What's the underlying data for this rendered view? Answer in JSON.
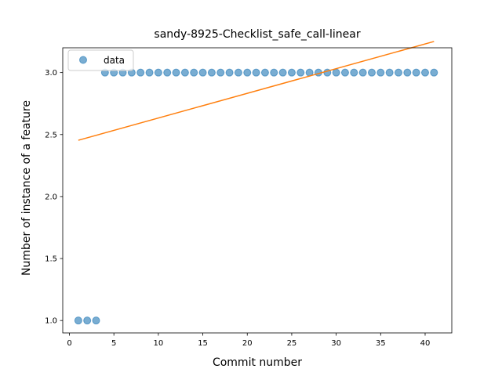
{
  "chart_data": {
    "type": "scatter",
    "title": "sandy-8925-Checklist_safe_call-linear",
    "xlabel": "Commit number",
    "ylabel": "Number of instance of a feature",
    "xlim": [
      -0.75,
      43.0
    ],
    "ylim": [
      0.9,
      3.2
    ],
    "xticks": [
      0,
      5,
      10,
      15,
      20,
      25,
      30,
      35,
      40
    ],
    "xtick_labels": [
      "0",
      "5",
      "10",
      "15",
      "20",
      "25",
      "30",
      "35",
      "40"
    ],
    "yticks": [
      1.0,
      1.5,
      2.0,
      2.5,
      3.0
    ],
    "ytick_labels": [
      "1.0",
      "1.5",
      "2.0",
      "2.5",
      "3.0"
    ],
    "grid": false,
    "legend_position": "top-left",
    "series": [
      {
        "name": "data",
        "kind": "scatter",
        "color": "#1f77b4",
        "x": [
          1,
          2,
          3,
          4,
          5,
          6,
          7,
          8,
          9,
          10,
          11,
          12,
          13,
          14,
          15,
          16,
          17,
          18,
          19,
          20,
          21,
          22,
          23,
          24,
          25,
          26,
          27,
          28,
          29,
          30,
          31,
          32,
          33,
          34,
          35,
          36,
          37,
          38,
          39,
          40,
          41
        ],
        "y": [
          1,
          1,
          1,
          3,
          3,
          3,
          3,
          3,
          3,
          3,
          3,
          3,
          3,
          3,
          3,
          3,
          3,
          3,
          3,
          3,
          3,
          3,
          3,
          3,
          3,
          3,
          3,
          3,
          3,
          3,
          3,
          3,
          3,
          3,
          3,
          3,
          3,
          3,
          3,
          3,
          3
        ]
      },
      {
        "kind": "line",
        "color": "#ff7f0e",
        "x": [
          1,
          41
        ],
        "y": [
          2.454,
          3.251
        ]
      }
    ]
  }
}
